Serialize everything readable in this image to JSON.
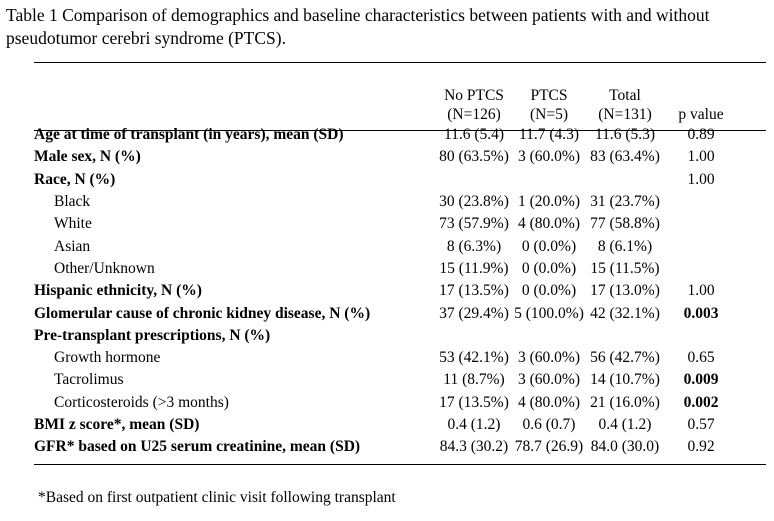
{
  "caption": "Table 1 Comparison of demographics and baseline characteristics between patients with and without pseudotumor cerebri syndrome (PTCS).",
  "header": {
    "no_ptcs_1": "No PTCS",
    "no_ptcs_2": "(N=126)",
    "ptcs_1": "PTCS",
    "ptcs_2": "(N=5)",
    "total_1": "Total",
    "total_2": "(N=131)",
    "pvalue": "p value"
  },
  "rows": [
    {
      "label": "Age at time of transplant (in years), mean (SD)",
      "no_ptcs": "11.6 (5.4)",
      "ptcs": "11.7 (4.3)",
      "total": "11.6 (5.3)",
      "p": "0.89"
    },
    {
      "label": "Male sex, N (%)",
      "no_ptcs": "80 (63.5%)",
      "ptcs": "3 (60.0%)",
      "total": "83 (63.4%)",
      "p": "1.00"
    },
    {
      "label": "Race, N (%)",
      "no_ptcs": "",
      "ptcs": "",
      "total": "",
      "p": "1.00"
    },
    {
      "label": "Black",
      "no_ptcs": "30 (23.8%)",
      "ptcs": "1 (20.0%)",
      "total": "31 (23.7%)",
      "p": ""
    },
    {
      "label": "White",
      "no_ptcs": "73 (57.9%)",
      "ptcs": "4 (80.0%)",
      "total": "77 (58.8%)",
      "p": ""
    },
    {
      "label": "Asian",
      "no_ptcs": "8 (6.3%)",
      "ptcs": "0 (0.0%)",
      "total": "8 (6.1%)",
      "p": ""
    },
    {
      "label": "Other/Unknown",
      "no_ptcs": "15 (11.9%)",
      "ptcs": "0 (0.0%)",
      "total": "15 (11.5%)",
      "p": ""
    },
    {
      "label": "Hispanic ethnicity, N (%)",
      "no_ptcs": "17 (13.5%)",
      "ptcs": "0 (0.0%)",
      "total": "17 (13.0%)",
      "p": "1.00"
    },
    {
      "label": "Glomerular cause of chronic kidney disease, N (%)",
      "no_ptcs": "37 (29.4%)",
      "ptcs": "5 (100.0%)",
      "total": "42 (32.1%)",
      "p": "0.003"
    },
    {
      "label": "Pre-transplant prescriptions, N (%)",
      "no_ptcs": "",
      "ptcs": "",
      "total": "",
      "p": ""
    },
    {
      "label": "Growth hormone",
      "no_ptcs": "53 (42.1%)",
      "ptcs": "3 (60.0%)",
      "total": "56 (42.7%)",
      "p": "0.65"
    },
    {
      "label": "Tacrolimus",
      "no_ptcs": "11 (8.7%)",
      "ptcs": "3 (60.0%)",
      "total": "14 (10.7%)",
      "p": "0.009"
    },
    {
      "label": "Corticosteroids (>3 months)",
      "no_ptcs": "17 (13.5%)",
      "ptcs": "4 (80.0%)",
      "total": "21 (16.0%)",
      "p": "0.002"
    },
    {
      "label": "BMI z score*, mean (SD)",
      "no_ptcs": "0.4 (1.2)",
      "ptcs": "0.6 (0.7)",
      "total": "0.4 (1.2)",
      "p": "0.57"
    },
    {
      "label": "GFR* based on U25 serum creatinine, mean (SD)",
      "no_ptcs": "84.3 (30.2)",
      "ptcs": "78.7 (26.9)",
      "total": "84.0 (30.0)",
      "p": "0.92"
    }
  ],
  "footnote": "*Based on first outpatient clinic visit following transplant"
}
